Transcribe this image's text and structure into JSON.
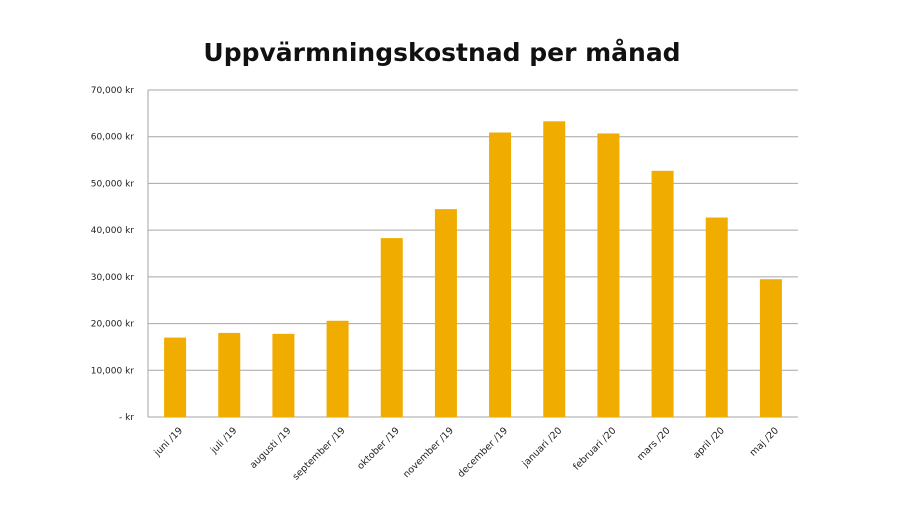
{
  "chart_data": {
    "type": "bar",
    "title": "Uppvärmningskostnad per månad",
    "xlabel": "",
    "ylabel": "",
    "categories": [
      "juni /19",
      "juli /19",
      "augusti /19",
      "september /19",
      "oktober /19",
      "november /19",
      "december /19",
      "januari /20",
      "februari /20",
      "mars /20",
      "april /20",
      "maj /20"
    ],
    "values": [
      17000,
      18000,
      17800,
      20600,
      38300,
      44500,
      60900,
      63300,
      60700,
      52700,
      42700,
      29500
    ],
    "ylim": [
      0,
      70000
    ],
    "yticks": [
      {
        "value": 0,
        "label": "-  kr"
      },
      {
        "value": 10000,
        "label": "10,000 kr"
      },
      {
        "value": 20000,
        "label": "20,000 kr"
      },
      {
        "value": 30000,
        "label": "30,000 kr"
      },
      {
        "value": 40000,
        "label": "40,000 kr"
      },
      {
        "value": 50000,
        "label": "50,000 kr"
      },
      {
        "value": 60000,
        "label": "60,000 kr"
      },
      {
        "value": 70000,
        "label": "70,000 kr"
      }
    ],
    "grid": true,
    "legend": "none",
    "bar_color": "#f0ad00",
    "grid_color": "#a6a6a6"
  }
}
